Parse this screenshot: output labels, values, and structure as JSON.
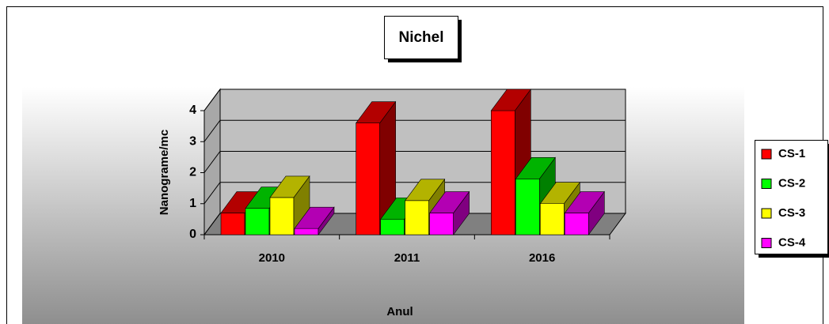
{
  "chart_data": {
    "type": "bar3d",
    "title": "Nichel",
    "x_label": "Anul",
    "y_label": "Nanograme/mc",
    "categories": [
      "2010",
      "2011",
      "2016"
    ],
    "series": [
      {
        "name": "CS-1",
        "color": "#ff0000",
        "values": [
          0.7,
          3.6,
          4.0
        ]
      },
      {
        "name": "CS-2",
        "color": "#00ff00",
        "values": [
          0.85,
          0.5,
          1.8
        ]
      },
      {
        "name": "CS-3",
        "color": "#ffff00",
        "values": [
          1.2,
          1.1,
          1.0
        ]
      },
      {
        "name": "CS-4",
        "color": "#ff00ff",
        "values": [
          0.2,
          0.7,
          0.7
        ]
      }
    ],
    "ylim": [
      0,
      4
    ],
    "yticks": [
      0,
      1,
      2,
      3,
      4
    ],
    "grid": true,
    "legend": "right"
  }
}
